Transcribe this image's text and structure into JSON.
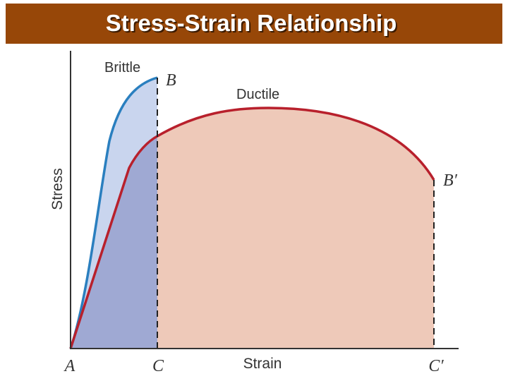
{
  "title": "Stress-Strain Relationship",
  "curves": [
    {
      "label": "Brittle",
      "end_label": "B"
    },
    {
      "label": "Ductile",
      "end_label": "B′"
    }
  ],
  "axes": {
    "y_label": "Stress",
    "x_label": "Strain",
    "origin_label": "A",
    "x_points": [
      "C",
      "C′"
    ]
  }
}
